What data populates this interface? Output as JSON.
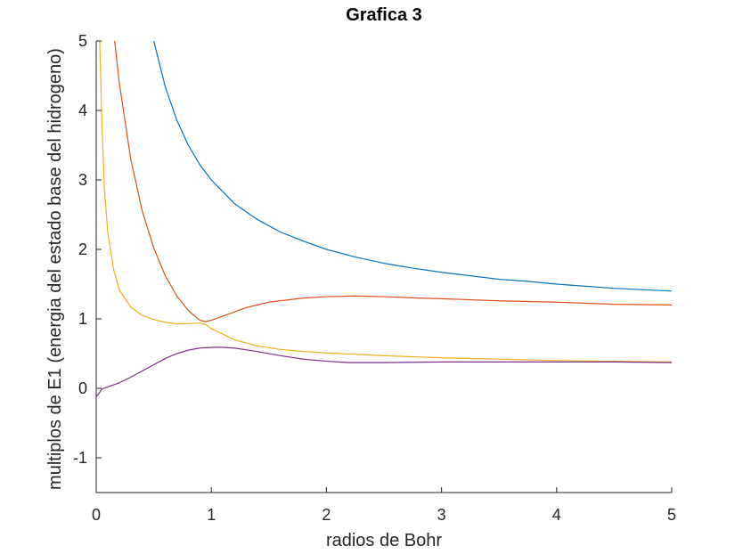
{
  "chart_data": {
    "type": "line",
    "title": "Grafica 3",
    "xlabel": "radios de Bohr",
    "ylabel": "multiplos de E1 (energia del estado base del hidrogeno)",
    "xlim": [
      0,
      5
    ],
    "ylim": [
      -1.5,
      5
    ],
    "xticks": [
      "0",
      "1",
      "2",
      "3",
      "4",
      "5"
    ],
    "yticks": [
      "-1",
      "0",
      "1",
      "2",
      "3",
      "4",
      "5"
    ],
    "grid": false,
    "series": [
      {
        "color": "#0072BD",
        "points": [
          [
            0.5,
            5.0
          ],
          [
            0.6,
            4.34
          ],
          [
            0.7,
            3.86
          ],
          [
            0.8,
            3.5
          ],
          [
            0.9,
            3.22
          ],
          [
            1.0,
            3.0
          ],
          [
            1.2,
            2.66
          ],
          [
            1.4,
            2.43
          ],
          [
            1.6,
            2.25
          ],
          [
            1.8,
            2.12
          ],
          [
            2.0,
            2.0
          ],
          [
            2.25,
            1.89
          ],
          [
            2.5,
            1.8
          ],
          [
            2.75,
            1.73
          ],
          [
            3.0,
            1.67
          ],
          [
            3.25,
            1.62
          ],
          [
            3.5,
            1.57
          ],
          [
            3.75,
            1.54
          ],
          [
            4.0,
            1.5
          ],
          [
            4.5,
            1.44
          ],
          [
            5.0,
            1.4
          ]
        ]
      },
      {
        "color": "#D95319",
        "points": [
          [
            0.16,
            5.0
          ],
          [
            0.2,
            4.4
          ],
          [
            0.3,
            3.3
          ],
          [
            0.4,
            2.55
          ],
          [
            0.5,
            2.02
          ],
          [
            0.6,
            1.62
          ],
          [
            0.7,
            1.33
          ],
          [
            0.8,
            1.12
          ],
          [
            0.9,
            0.98
          ],
          [
            0.95,
            0.96
          ],
          [
            1.0,
            0.98
          ],
          [
            1.1,
            1.04
          ],
          [
            1.3,
            1.16
          ],
          [
            1.5,
            1.24
          ],
          [
            1.8,
            1.3
          ],
          [
            2.0,
            1.32
          ],
          [
            2.25,
            1.33
          ],
          [
            2.5,
            1.32
          ],
          [
            2.8,
            1.3
          ],
          [
            3.0,
            1.29
          ],
          [
            3.5,
            1.26
          ],
          [
            4.0,
            1.24
          ],
          [
            4.5,
            1.21
          ],
          [
            5.0,
            1.2
          ]
        ]
      },
      {
        "color": "#EDB120",
        "points": [
          [
            0.03,
            5.0
          ],
          [
            0.05,
            3.8
          ],
          [
            0.07,
            2.9
          ],
          [
            0.1,
            2.25
          ],
          [
            0.15,
            1.72
          ],
          [
            0.2,
            1.42
          ],
          [
            0.3,
            1.17
          ],
          [
            0.4,
            1.05
          ],
          [
            0.5,
            0.99
          ],
          [
            0.6,
            0.95
          ],
          [
            0.7,
            0.93
          ],
          [
            0.8,
            0.93
          ],
          [
            0.9,
            0.94
          ],
          [
            0.95,
            0.92
          ],
          [
            1.0,
            0.86
          ],
          [
            1.2,
            0.7
          ],
          [
            1.4,
            0.61
          ],
          [
            1.6,
            0.56
          ],
          [
            1.8,
            0.53
          ],
          [
            2.0,
            0.51
          ],
          [
            2.5,
            0.47
          ],
          [
            3.0,
            0.44
          ],
          [
            3.5,
            0.42
          ],
          [
            4.0,
            0.4
          ],
          [
            4.5,
            0.39
          ],
          [
            5.0,
            0.38
          ]
        ]
      },
      {
        "color": "#7E2F8E",
        "points": [
          [
            0.0,
            -0.12
          ],
          [
            0.02,
            -0.08
          ],
          [
            0.05,
            -0.01
          ],
          [
            0.1,
            0.02
          ],
          [
            0.2,
            0.08
          ],
          [
            0.3,
            0.16
          ],
          [
            0.4,
            0.25
          ],
          [
            0.5,
            0.34
          ],
          [
            0.6,
            0.43
          ],
          [
            0.7,
            0.5
          ],
          [
            0.8,
            0.55
          ],
          [
            0.9,
            0.58
          ],
          [
            1.0,
            0.59
          ],
          [
            1.1,
            0.59
          ],
          [
            1.2,
            0.58
          ],
          [
            1.4,
            0.53
          ],
          [
            1.6,
            0.47
          ],
          [
            1.8,
            0.42
          ],
          [
            2.0,
            0.39
          ],
          [
            2.2,
            0.37
          ],
          [
            2.5,
            0.37
          ],
          [
            3.0,
            0.38
          ],
          [
            3.5,
            0.38
          ],
          [
            4.0,
            0.38
          ],
          [
            4.5,
            0.38
          ],
          [
            5.0,
            0.37
          ]
        ]
      }
    ]
  }
}
